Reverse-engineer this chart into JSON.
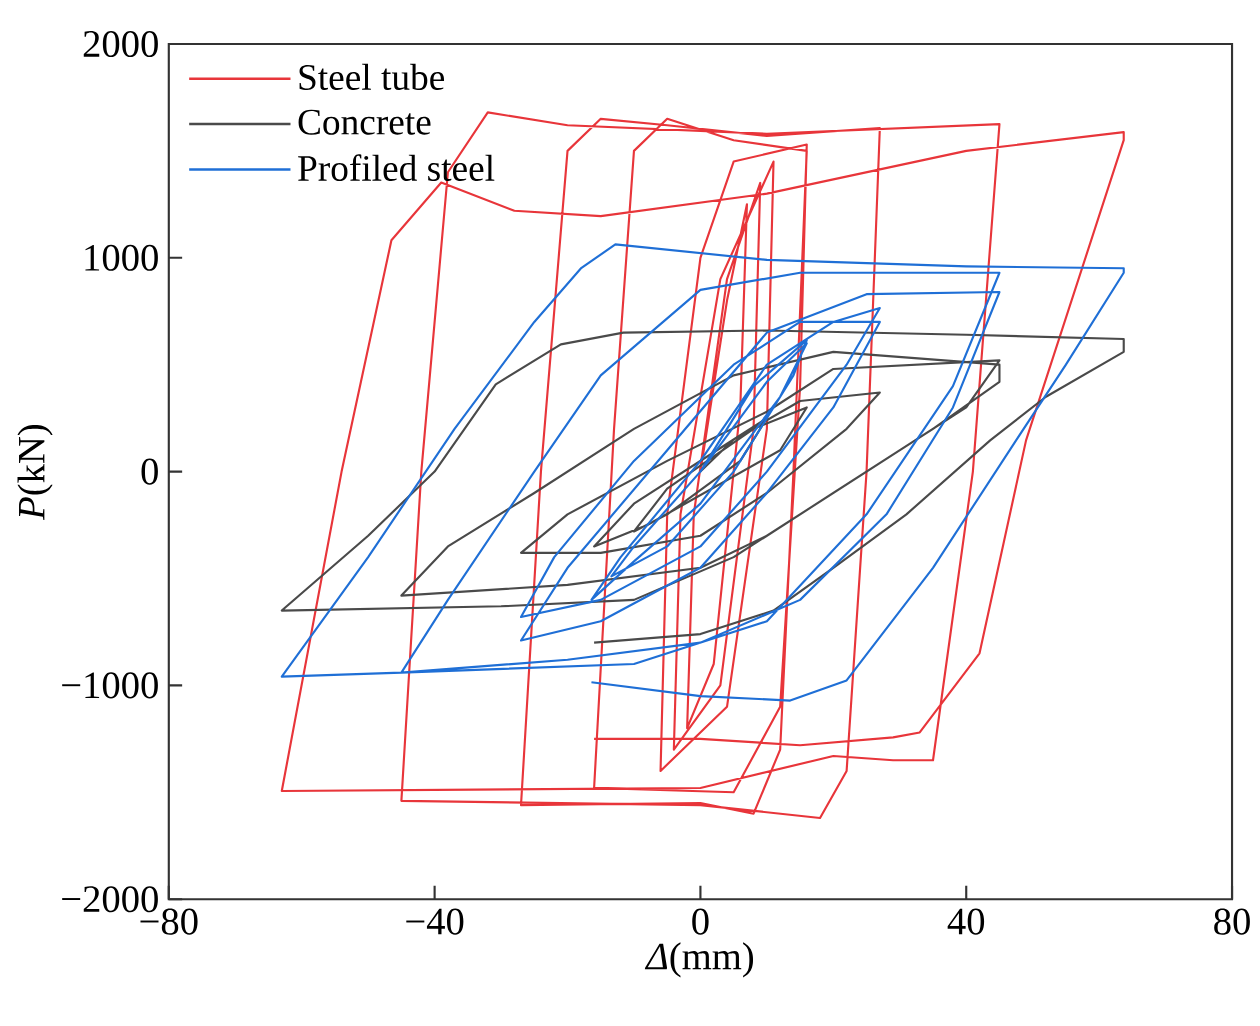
{
  "chart_data": {
    "type": "line",
    "xlabel": "*Δ*(mm)",
    "ylabel": "*P*(kN)",
    "xlim": [
      -80,
      80
    ],
    "ylim": [
      -2000,
      2000
    ],
    "xticks": [
      {
        "value": -80,
        "label": "−80"
      },
      {
        "value": -40,
        "label": "−40"
      },
      0,
      40,
      80
    ],
    "yticks": [
      {
        "value": -2000,
        "label": "−2000"
      },
      {
        "value": -1000,
        "label": "−1000"
      },
      0,
      1000,
      2000
    ],
    "legend": "top left",
    "series": [
      {
        "name": "Steel tube",
        "color": "#e8353a",
        "x": [
          0,
          4,
          7,
          6,
          2,
          -2,
          -1,
          4,
          9,
          8,
          3,
          -4,
          -3,
          3,
          11,
          10,
          4,
          -6,
          -5,
          0,
          5,
          16,
          15,
          12,
          5,
          -16,
          -13,
          -10,
          -5,
          5,
          16,
          14,
          12,
          8,
          0,
          -27,
          -24,
          -20,
          -15,
          -5,
          10,
          27,
          25,
          22,
          18,
          0,
          -45,
          -42,
          -38,
          -32,
          -20,
          10,
          45,
          41,
          35,
          29,
          20,
          0,
          -63,
          -54,
          -46.5,
          -39,
          -28,
          -15,
          10,
          40,
          63.7,
          63.7,
          49,
          42,
          33,
          29,
          15,
          0,
          -16
        ],
        "values": [
          0,
          800,
          1250,
          300,
          -900,
          -1200,
          -200,
          900,
          1350,
          200,
          -1000,
          -1300,
          -200,
          900,
          1450,
          200,
          -1100,
          -1400,
          -200,
          1000,
          1450,
          1530,
          400,
          -1100,
          -1500,
          -1480,
          200,
          1500,
          1650,
          1550,
          1500,
          0,
          -1300,
          -1600,
          -1550,
          -1560,
          0,
          1500,
          1650,
          1620,
          1570,
          1607,
          0,
          -1400,
          -1620,
          -1560,
          -1540,
          0,
          1400,
          1680,
          1620,
          1580,
          1625,
          0,
          -1350,
          -1350,
          -1330,
          -1480,
          -1494,
          0,
          1082,
          1352,
          1220,
          1195,
          1300,
          1500,
          1588,
          1550,
          146,
          -850,
          -1220,
          -1243,
          -1280,
          -1250,
          -1250
        ]
      },
      {
        "name": "Concrete",
        "color": "#4a4a4a",
        "x": [
          0,
          5,
          10,
          6,
          -5,
          -10,
          -5,
          8,
          16,
          12,
          -8,
          -16,
          -10,
          5,
          15,
          27,
          22,
          10,
          0,
          -15,
          -27,
          -20,
          -5,
          10,
          20,
          45,
          40,
          25,
          10,
          0,
          -20,
          -45,
          -38,
          -25,
          -10,
          5,
          20,
          45,
          45,
          35,
          20,
          5,
          -10,
          -30,
          -63,
          -50,
          -40,
          -30.8,
          -21,
          -11.6,
          10,
          40,
          63.7,
          63.7,
          52,
          43.6,
          31,
          20,
          11,
          0,
          -16
        ],
        "values": [
          0,
          150,
          250,
          50,
          -200,
          -280,
          -80,
          200,
          300,
          100,
          -250,
          -350,
          -150,
          150,
          330,
          370,
          200,
          -100,
          -300,
          -380,
          -380,
          -200,
          50,
          280,
          480,
          520,
          300,
          0,
          -300,
          -450,
          -530,
          -580,
          -350,
          -100,
          200,
          450,
          560,
          500,
          420,
          200,
          -100,
          -400,
          -600,
          -630,
          -650,
          -300,
          0,
          408,
          595,
          650,
          660,
          640,
          620,
          560,
          350,
          146,
          -200,
          -450,
          -650,
          -760,
          -800
        ]
      },
      {
        "name": "Profiled steel",
        "color": "#1f6fd6",
        "x": [
          0,
          8,
          16,
          14,
          5,
          -5,
          -13.4,
          -10,
          0,
          10,
          16,
          12,
          0,
          -10,
          -16.4,
          -12,
          0,
          10,
          20,
          27,
          22,
          10,
          0,
          -15,
          -27,
          -22,
          -10,
          5,
          15,
          27,
          20,
          10,
          0,
          -15,
          -27,
          -20,
          -5,
          10,
          25,
          45,
          38,
          28,
          15,
          0,
          -20,
          -45,
          -38,
          -25,
          -15,
          0,
          15,
          45,
          38,
          25,
          10,
          -10,
          -45,
          -63,
          -50,
          -37,
          -25,
          -18,
          -12.8,
          10,
          40,
          63.7,
          63.7,
          55,
          47.5,
          35,
          22,
          13.5,
          0,
          -16.4
        ],
        "values": [
          0,
          400,
          615,
          450,
          0,
          -350,
          -490,
          -350,
          0,
          420,
          600,
          350,
          -150,
          -420,
          -600,
          -400,
          50,
          500,
          700,
          765,
          500,
          0,
          -350,
          -600,
          -680,
          -400,
          50,
          500,
          700,
          700,
          300,
          -100,
          -450,
          -700,
          -790,
          -450,
          100,
          650,
          830,
          840,
          300,
          -200,
          -600,
          -800,
          -880,
          -940,
          -600,
          0,
          450,
          850,
          930,
          930,
          400,
          -200,
          -700,
          -900,
          -940,
          -959,
          -400,
          200,
          700,
          950,
          1063,
          990,
          960,
          951,
          930,
          500,
          146,
          -450,
          -977,
          -1071,
          -1050,
          -985
        ]
      }
    ]
  }
}
